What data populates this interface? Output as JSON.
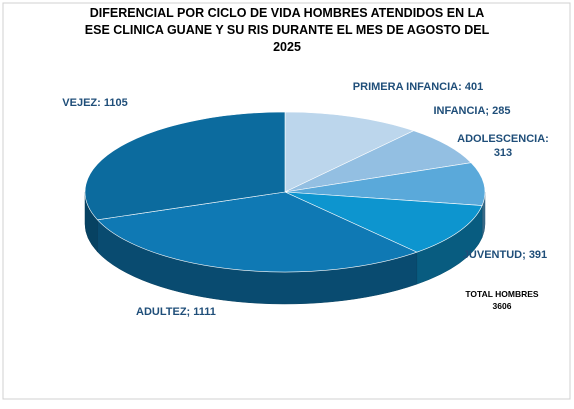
{
  "chart_data": {
    "type": "pie3d",
    "title": [
      "DIFERENCIAL POR CICLO DE VIDA HOMBRES ATENDIDOS EN LA",
      "ESE CLINICA  GUANE Y SU RIS DURANTE EL MES DE AGOSTO DEL",
      "2025"
    ],
    "categories": [
      "PRIMERA INFANCIA: 401",
      "INFANCIA; 285",
      "ADOLESCENCIA:\n313",
      "JUVENTUD; 391",
      "ADULTEZ; 1111",
      "VEJEZ: 1105"
    ],
    "values": [
      401,
      285,
      313,
      391,
      1111,
      1105
    ],
    "colors": [
      "#bcd6ec",
      "#93bfe2",
      "#5aa9da",
      "#0d95cf",
      "#0f79b4",
      "#0c6b9e"
    ],
    "annotation": [
      "TOTAL HOMBRES",
      "3606"
    ]
  }
}
